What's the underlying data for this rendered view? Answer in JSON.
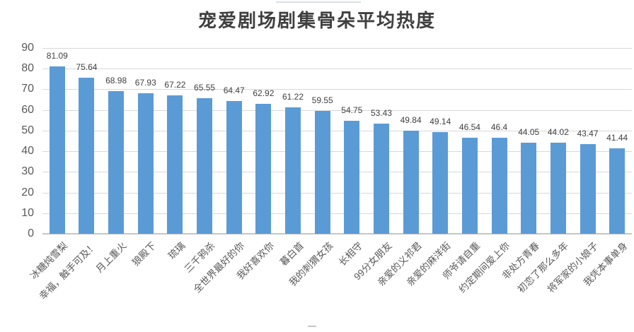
{
  "page": {
    "background": "#FFFFFF"
  },
  "chart_data": {
    "type": "bar",
    "title": "宠爱剧场剧集骨朵平均热度",
    "categories": [
      "冰糖炖雪梨",
      "幸福，触手可及！",
      "月上重火",
      "狼殿下",
      "琉璃",
      "三千鸦杀",
      "全世界最好的你",
      "我好喜欢你",
      "暮白首",
      "我的刺猬女孩",
      "长相守",
      "99分女朋友",
      "亲爱的义祁君",
      "亲爱的麻洋街",
      "师爷请自重",
      "约定期间爱上你",
      "非处方青春",
      "初恋了那么多年",
      "将军家的小娘子",
      "我凭本事单身"
    ],
    "values": [
      81.09,
      75.64,
      68.98,
      67.93,
      67.22,
      65.55,
      64.47,
      62.92,
      61.22,
      59.55,
      54.75,
      53.43,
      49.84,
      49.14,
      46.54,
      46.4,
      44.05,
      44.02,
      43.47,
      41.44
    ],
    "xlabel": "",
    "ylabel": "",
    "ylim": [
      0,
      90
    ],
    "yticks": [
      0,
      10,
      20,
      30,
      40,
      50,
      60,
      70,
      80,
      90
    ],
    "grid": "horizontal",
    "legend_position": "none",
    "data_labels_shown": true,
    "x_label_rotation_deg": 45,
    "bar_color": "#5B9BD5",
    "gridline_color": "#D9D9D9",
    "axis_text_color": "#595959",
    "value_label_color": "#404040",
    "title_color": "#3F3F3F"
  }
}
